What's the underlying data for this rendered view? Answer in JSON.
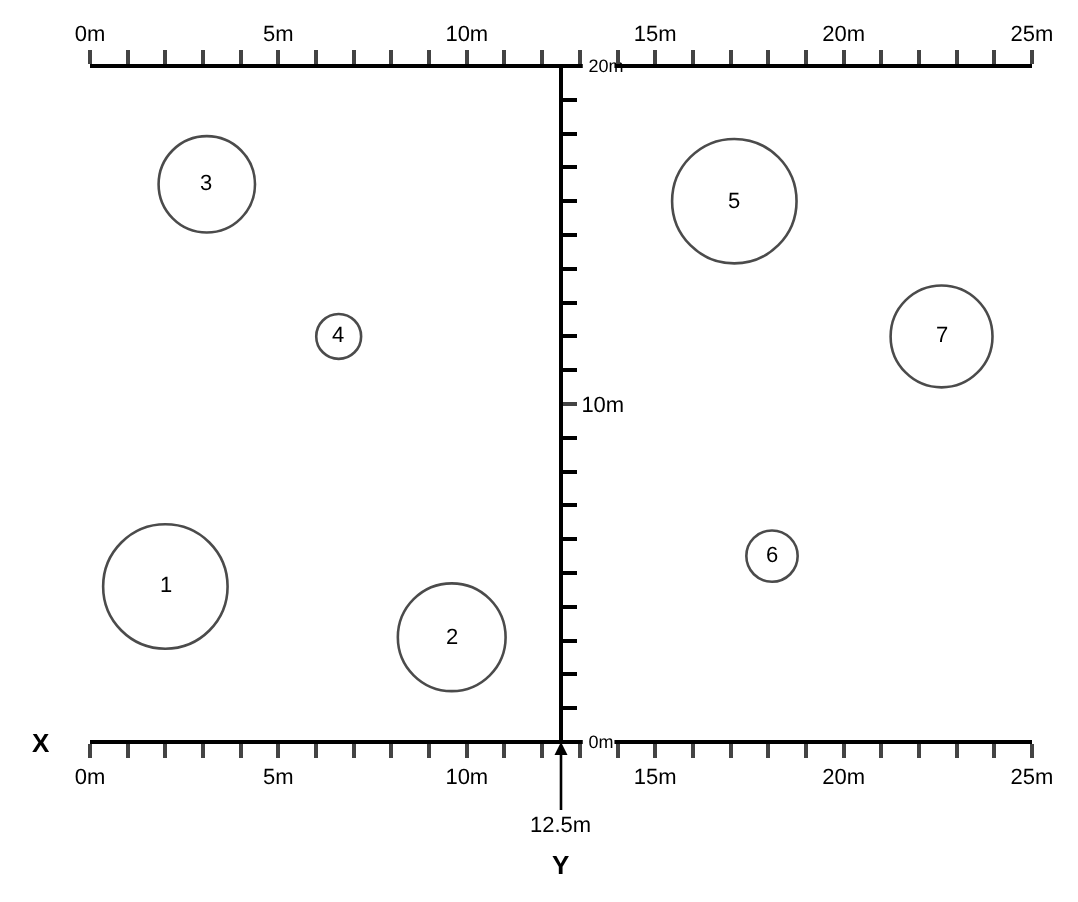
{
  "chart_data": {
    "type": "bubble",
    "xlabel": "X",
    "xlim": [
      0,
      25
    ],
    "ylim": [
      0,
      20
    ],
    "xticks": [
      {
        "value": 0,
        "label": "0m"
      },
      {
        "value": 1,
        "label": null
      },
      {
        "value": 2,
        "label": null
      },
      {
        "value": 3,
        "label": null
      },
      {
        "value": 4,
        "label": null
      },
      {
        "value": 5,
        "label": "5m"
      },
      {
        "value": 6,
        "label": null
      },
      {
        "value": 7,
        "label": null
      },
      {
        "value": 8,
        "label": null
      },
      {
        "value": 9,
        "label": null
      },
      {
        "value": 10,
        "label": "10m"
      },
      {
        "value": 11,
        "label": null
      },
      {
        "value": 12,
        "label": null
      },
      {
        "value": 13,
        "label": null
      },
      {
        "value": 14,
        "label": null
      },
      {
        "value": 15,
        "label": "15m"
      },
      {
        "value": 16,
        "label": null
      },
      {
        "value": 17,
        "label": null
      },
      {
        "value": 18,
        "label": null
      },
      {
        "value": 19,
        "label": null
      },
      {
        "value": 20,
        "label": "20m"
      },
      {
        "value": 21,
        "label": null
      },
      {
        "value": 22,
        "label": null
      },
      {
        "value": 23,
        "label": null
      },
      {
        "value": 24,
        "label": null
      },
      {
        "value": 25,
        "label": "25m"
      }
    ],
    "x2lim": [
      0,
      25
    ],
    "x2ticks": [
      {
        "value": 0,
        "label": "0m"
      },
      {
        "value": 1,
        "label": null
      },
      {
        "value": 2,
        "label": null
      },
      {
        "value": 3,
        "label": null
      },
      {
        "value": 4,
        "label": null
      },
      {
        "value": 5,
        "label": "5m"
      },
      {
        "value": 6,
        "label": null
      },
      {
        "value": 7,
        "label": null
      },
      {
        "value": 8,
        "label": null
      },
      {
        "value": 9,
        "label": null
      },
      {
        "value": 10,
        "label": "10m"
      },
      {
        "value": 11,
        "label": null
      },
      {
        "value": 12,
        "label": null
      },
      {
        "value": 13,
        "label": null
      },
      {
        "value": 14,
        "label": null
      },
      {
        "value": 15,
        "label": "15m"
      },
      {
        "value": 16,
        "label": null
      },
      {
        "value": 17,
        "label": null
      },
      {
        "value": 18,
        "label": null
      },
      {
        "value": 19,
        "label": null
      },
      {
        "value": 20,
        "label": "20m"
      },
      {
        "value": 21,
        "label": null
      },
      {
        "value": 22,
        "label": null
      },
      {
        "value": 23,
        "label": null
      },
      {
        "value": 24,
        "label": null
      },
      {
        "value": 25,
        "label": "25m"
      }
    ],
    "yticks": [
      {
        "value": 0,
        "label": "0m"
      },
      {
        "value": 10,
        "label": "10m"
      },
      {
        "value": 20,
        "label": "20m"
      }
    ],
    "x": [
      2.0,
      9.6,
      3.1,
      6.6,
      17.1,
      18.1,
      22.6
    ],
    "series": [
      {
        "color": "#000000",
        "values": [
          4.6,
          3.1,
          16.5,
          12.0,
          16.0,
          5.5,
          12.0
        ],
        "sizes": [
          1,
          0.75,
          0.6,
          0.13,
          1,
          0.17,
          0.67
        ]
      }
    ],
    "ref_lines": [
      {
        "axis": "x",
        "value": 12.5,
        "label": "12.5m",
        "color": "#000000"
      }
    ],
    "annotations": [
      {
        "text": "1",
        "x": 2.0,
        "y": 4.6
      },
      {
        "text": "2",
        "x": 9.6,
        "y": 3.1
      },
      {
        "text": "3",
        "x": 3.1,
        "y": 16.5
      },
      {
        "text": "4",
        "x": 6.6,
        "y": 12.0
      },
      {
        "text": "5",
        "x": 17.1,
        "y": 16.0
      },
      {
        "text": "6",
        "x": 18.1,
        "y": 5.5
      },
      {
        "text": "7",
        "x": 22.6,
        "y": 12.0
      },
      "Y"
    ]
  }
}
